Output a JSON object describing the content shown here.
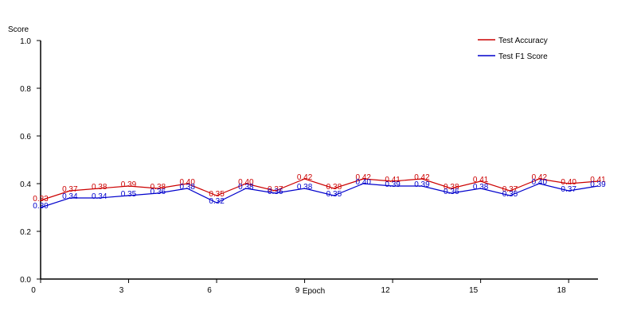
{
  "chart_data": {
    "type": "line",
    "title": "",
    "xlabel": "Epoch",
    "ylabel": "Score",
    "xlim": [
      0,
      19
    ],
    "ylim": [
      0.0,
      1.0
    ],
    "x": [
      0,
      1,
      2,
      3,
      4,
      5,
      6,
      7,
      8,
      9,
      10,
      11,
      12,
      13,
      14,
      15,
      16,
      17,
      18,
      19
    ],
    "x_ticks": [
      0,
      3,
      6,
      9,
      12,
      15,
      18
    ],
    "x_tick_labels": [
      "0",
      "3",
      "6",
      "9",
      "12",
      "15",
      "18"
    ],
    "y_ticks": [
      0.0,
      0.2,
      0.4,
      0.6,
      0.8,
      1.0
    ],
    "y_tick_labels": [
      "0.0",
      "0.2",
      "0.4",
      "0.6",
      "0.8",
      "1.0"
    ],
    "grid": false,
    "legend_position": "top-right",
    "series": [
      {
        "name": "Test Accuracy",
        "color": "#cc0000",
        "values": [
          0.33,
          0.37,
          0.38,
          0.39,
          0.38,
          0.4,
          0.35,
          0.4,
          0.37,
          0.42,
          0.38,
          0.42,
          0.41,
          0.42,
          0.38,
          0.41,
          0.37,
          0.42,
          0.4,
          0.41
        ],
        "labels": [
          "0.33",
          "0.37",
          "0.38",
          "0.39",
          "0.38",
          "0.40",
          "0.35",
          "0.40",
          "0.37",
          "0.42",
          "0.38",
          "0.42",
          "0.41",
          "0.42",
          "0.38",
          "0.41",
          "0.37",
          "0.42",
          "0.40",
          "0.41"
        ]
      },
      {
        "name": "Test F1 Score",
        "color": "#0000cc",
        "values": [
          0.3,
          0.34,
          0.34,
          0.35,
          0.36,
          0.38,
          0.32,
          0.38,
          0.36,
          0.38,
          0.35,
          0.4,
          0.39,
          0.39,
          0.36,
          0.38,
          0.35,
          0.4,
          0.37,
          0.39
        ],
        "labels": [
          "0.30",
          "0.34",
          "0.34",
          "0.35",
          "0.36",
          "0.38",
          "0.32",
          "0.38",
          "0.36",
          "0.38",
          "0.35",
          "0.40",
          "0.39",
          "0.39",
          "0.36",
          "0.38",
          "0.35",
          "0.40",
          "0.37",
          "0.39"
        ]
      }
    ]
  }
}
